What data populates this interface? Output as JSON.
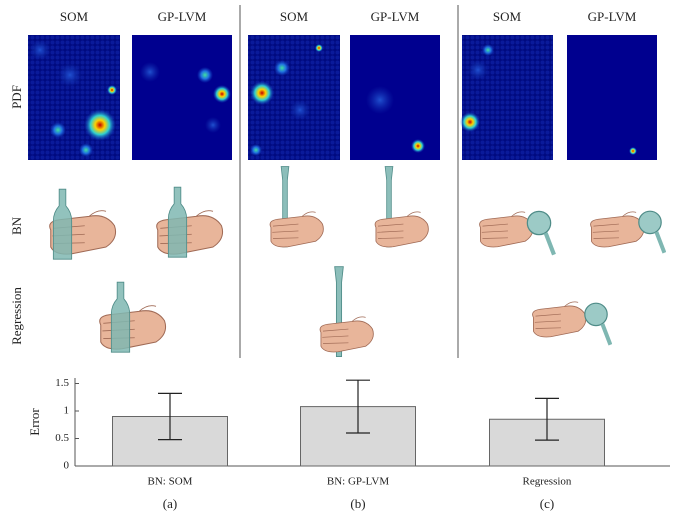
{
  "figure": {
    "row_labels": [
      "PDF",
      "BN",
      "Regression"
    ],
    "panels": [
      {
        "label": "(a)",
        "columns": [
          "SOM",
          "GP-LVM"
        ]
      },
      {
        "label": "(b)",
        "columns": [
          "SOM",
          "GP-LVM"
        ]
      },
      {
        "label": "(c)",
        "columns": [
          "SOM",
          "GP-LVM"
        ]
      }
    ]
  },
  "chart_data": {
    "type": "bar",
    "y_label": "Error",
    "categories": [
      "BN: SOM",
      "BN: GP-LVM",
      "Regression"
    ],
    "values": [
      0.9,
      1.08,
      0.85
    ],
    "errors": [
      0.42,
      0.48,
      0.38
    ],
    "color": "#d9d9d9",
    "ylim": [
      0,
      1.6
    ],
    "yticks": [
      0,
      0.5,
      1,
      1.5
    ]
  }
}
